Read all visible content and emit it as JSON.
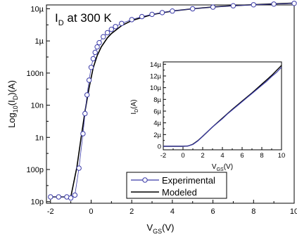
{
  "chart_data": [
    {
      "type": "line",
      "title": "",
      "annotation": {
        "text_main": "I",
        "text_sub": "D",
        "text_rest": " at 300 K"
      },
      "xlabel": {
        "main": "V",
        "sub": "GS",
        "rest": "(V)"
      },
      "ylabel": {
        "pre": "Log",
        "sub1": "10",
        "mid": "(I",
        "sub2": "D",
        "post": ")(A)"
      },
      "xlim": [
        -2.2,
        10
      ],
      "ylim_log10": [
        -11.05,
        -4.88
      ],
      "yscale": "log",
      "x_ticks": [
        -2,
        0,
        2,
        4,
        6,
        8,
        10
      ],
      "x_tick_labels": [
        "-2",
        "0",
        "2",
        "4",
        "6",
        "8",
        "10"
      ],
      "y_ticks_log10": [
        -11,
        -10,
        -9,
        -8,
        -7,
        -6,
        -5
      ],
      "y_tick_labels": [
        "10p",
        "100p",
        "1n",
        "10n",
        "100n",
        "1µ",
        "10µ"
      ],
      "grid": false,
      "legend": {
        "placement": "bottom-center"
      },
      "series": [
        {
          "name": "Experimental",
          "marker": "circle-open",
          "color": "#3b3ba8",
          "x": [
            -2.0,
            -1.6,
            -1.2,
            -1.0,
            -0.8,
            -0.6,
            -0.4,
            -0.3,
            -0.2,
            -0.1,
            0.0,
            0.1,
            0.2,
            0.3,
            0.4,
            0.6,
            0.8,
            1.0,
            1.2,
            1.5,
            2.0,
            2.5,
            3.0,
            3.5,
            4.0,
            5.0,
            6.0,
            7.0,
            8.0,
            9.0,
            10.0
          ],
          "y": [
            1.4e-11,
            1.4e-11,
            1.4e-11,
            1.3e-11,
            1.6e-11,
            1.1e-10,
            1.3e-09,
            5.5e-09,
            2.1e-08,
            6e-08,
            1.5e-07,
            2.8e-07,
            4.4e-07,
            6.5e-07,
            8.8e-07,
            1.35e-06,
            1.8e-06,
            2.3e-06,
            2.8e-06,
            3.5e-06,
            4.6e-06,
            5.7e-06,
            6.7e-06,
            7.6e-06,
            8.5e-06,
            1e-05,
            1.13e-05,
            1.24e-05,
            1.33e-05,
            1.4e-05,
            1.47e-05
          ]
        },
        {
          "name": "Modeled",
          "marker": "none",
          "color": "#000000",
          "x": [
            -2.0,
            -1.0,
            -0.7,
            -0.5,
            -0.3,
            -0.1,
            0.1,
            0.3,
            0.5,
            0.8,
            1.0,
            1.5,
            2.0,
            3.0,
            4.0,
            5.0,
            6.0,
            7.0,
            8.0,
            9.0,
            10.0
          ],
          "y": [
            1.4e-11,
            1.4e-11,
            1.2e-10,
            9e-10,
            6.5e-09,
            3.5e-08,
            1.45e-07,
            3.5e-07,
            6.5e-07,
            1.25e-06,
            1.7e-06,
            3e-06,
            4.3e-06,
            6.6e-06,
            8.5e-06,
            1e-05,
            1.14e-05,
            1.25e-05,
            1.34e-05,
            1.42e-05,
            1.5e-05
          ]
        }
      ]
    },
    {
      "type": "line",
      "title": "",
      "xlabel": {
        "main": "V",
        "sub": "GS",
        "rest": "(V)"
      },
      "ylabel": {
        "main": "I",
        "sub": "D",
        "rest": "(A)"
      },
      "xlim": [
        -2,
        10
      ],
      "ylim": [
        -6e-07,
        1.44e-05
      ],
      "x_ticks": [
        -2,
        0,
        2,
        4,
        6,
        8,
        10
      ],
      "x_tick_labels": [
        "-2",
        "0",
        "2",
        "4",
        "6",
        "8",
        "10"
      ],
      "y_ticks": [
        0,
        2e-06,
        4e-06,
        6e-06,
        8e-06,
        1e-05,
        1.2e-05,
        1.4e-05
      ],
      "y_tick_labels": [
        "0",
        "2µ",
        "4µ",
        "6µ",
        "8µ",
        "10µ",
        "12µ",
        "14µ"
      ],
      "grid": false,
      "series": [
        {
          "name": "Experimental",
          "marker": "circle-open",
          "color": "#3b3ba8",
          "x": [
            -2.0,
            -1.5,
            -1.0,
            -0.5,
            0.0,
            0.5,
            1.0,
            1.5,
            2.0,
            2.5,
            3.0,
            3.5,
            4.0,
            4.5,
            5.0,
            5.5,
            6.0,
            6.5,
            7.0,
            7.5,
            8.0,
            8.5,
            9.0,
            9.5,
            10.0
          ],
          "y": [
            0.0,
            0.0,
            0.0,
            0.0,
            0.0,
            5e-08,
            3e-07,
            9e-07,
            1.7e-06,
            2.5e-06,
            3.3e-06,
            4e-06,
            4.7e-06,
            5.5e-06,
            6.2e-06,
            6.9e-06,
            7.6e-06,
            8.3e-06,
            9e-06,
            9.7e-06,
            1.04e-05,
            1.11e-05,
            1.19e-05,
            1.26e-05,
            1.35e-05
          ]
        },
        {
          "name": "Modeled",
          "marker": "none",
          "color": "#000000",
          "x": [
            -2.0,
            -1.0,
            0.0,
            0.5,
            1.0,
            1.5,
            2.0,
            3.0,
            4.0,
            5.0,
            6.0,
            7.0,
            8.0,
            9.0,
            10.0
          ],
          "y": [
            0.0,
            0.0,
            0.0,
            5e-08,
            3.5e-07,
            9.5e-07,
            1.7e-06,
            3.3e-06,
            4.8e-06,
            6.3e-06,
            7.7e-06,
            9.1e-06,
            1.06e-05,
            1.21e-05,
            1.38e-05
          ]
        }
      ]
    }
  ]
}
